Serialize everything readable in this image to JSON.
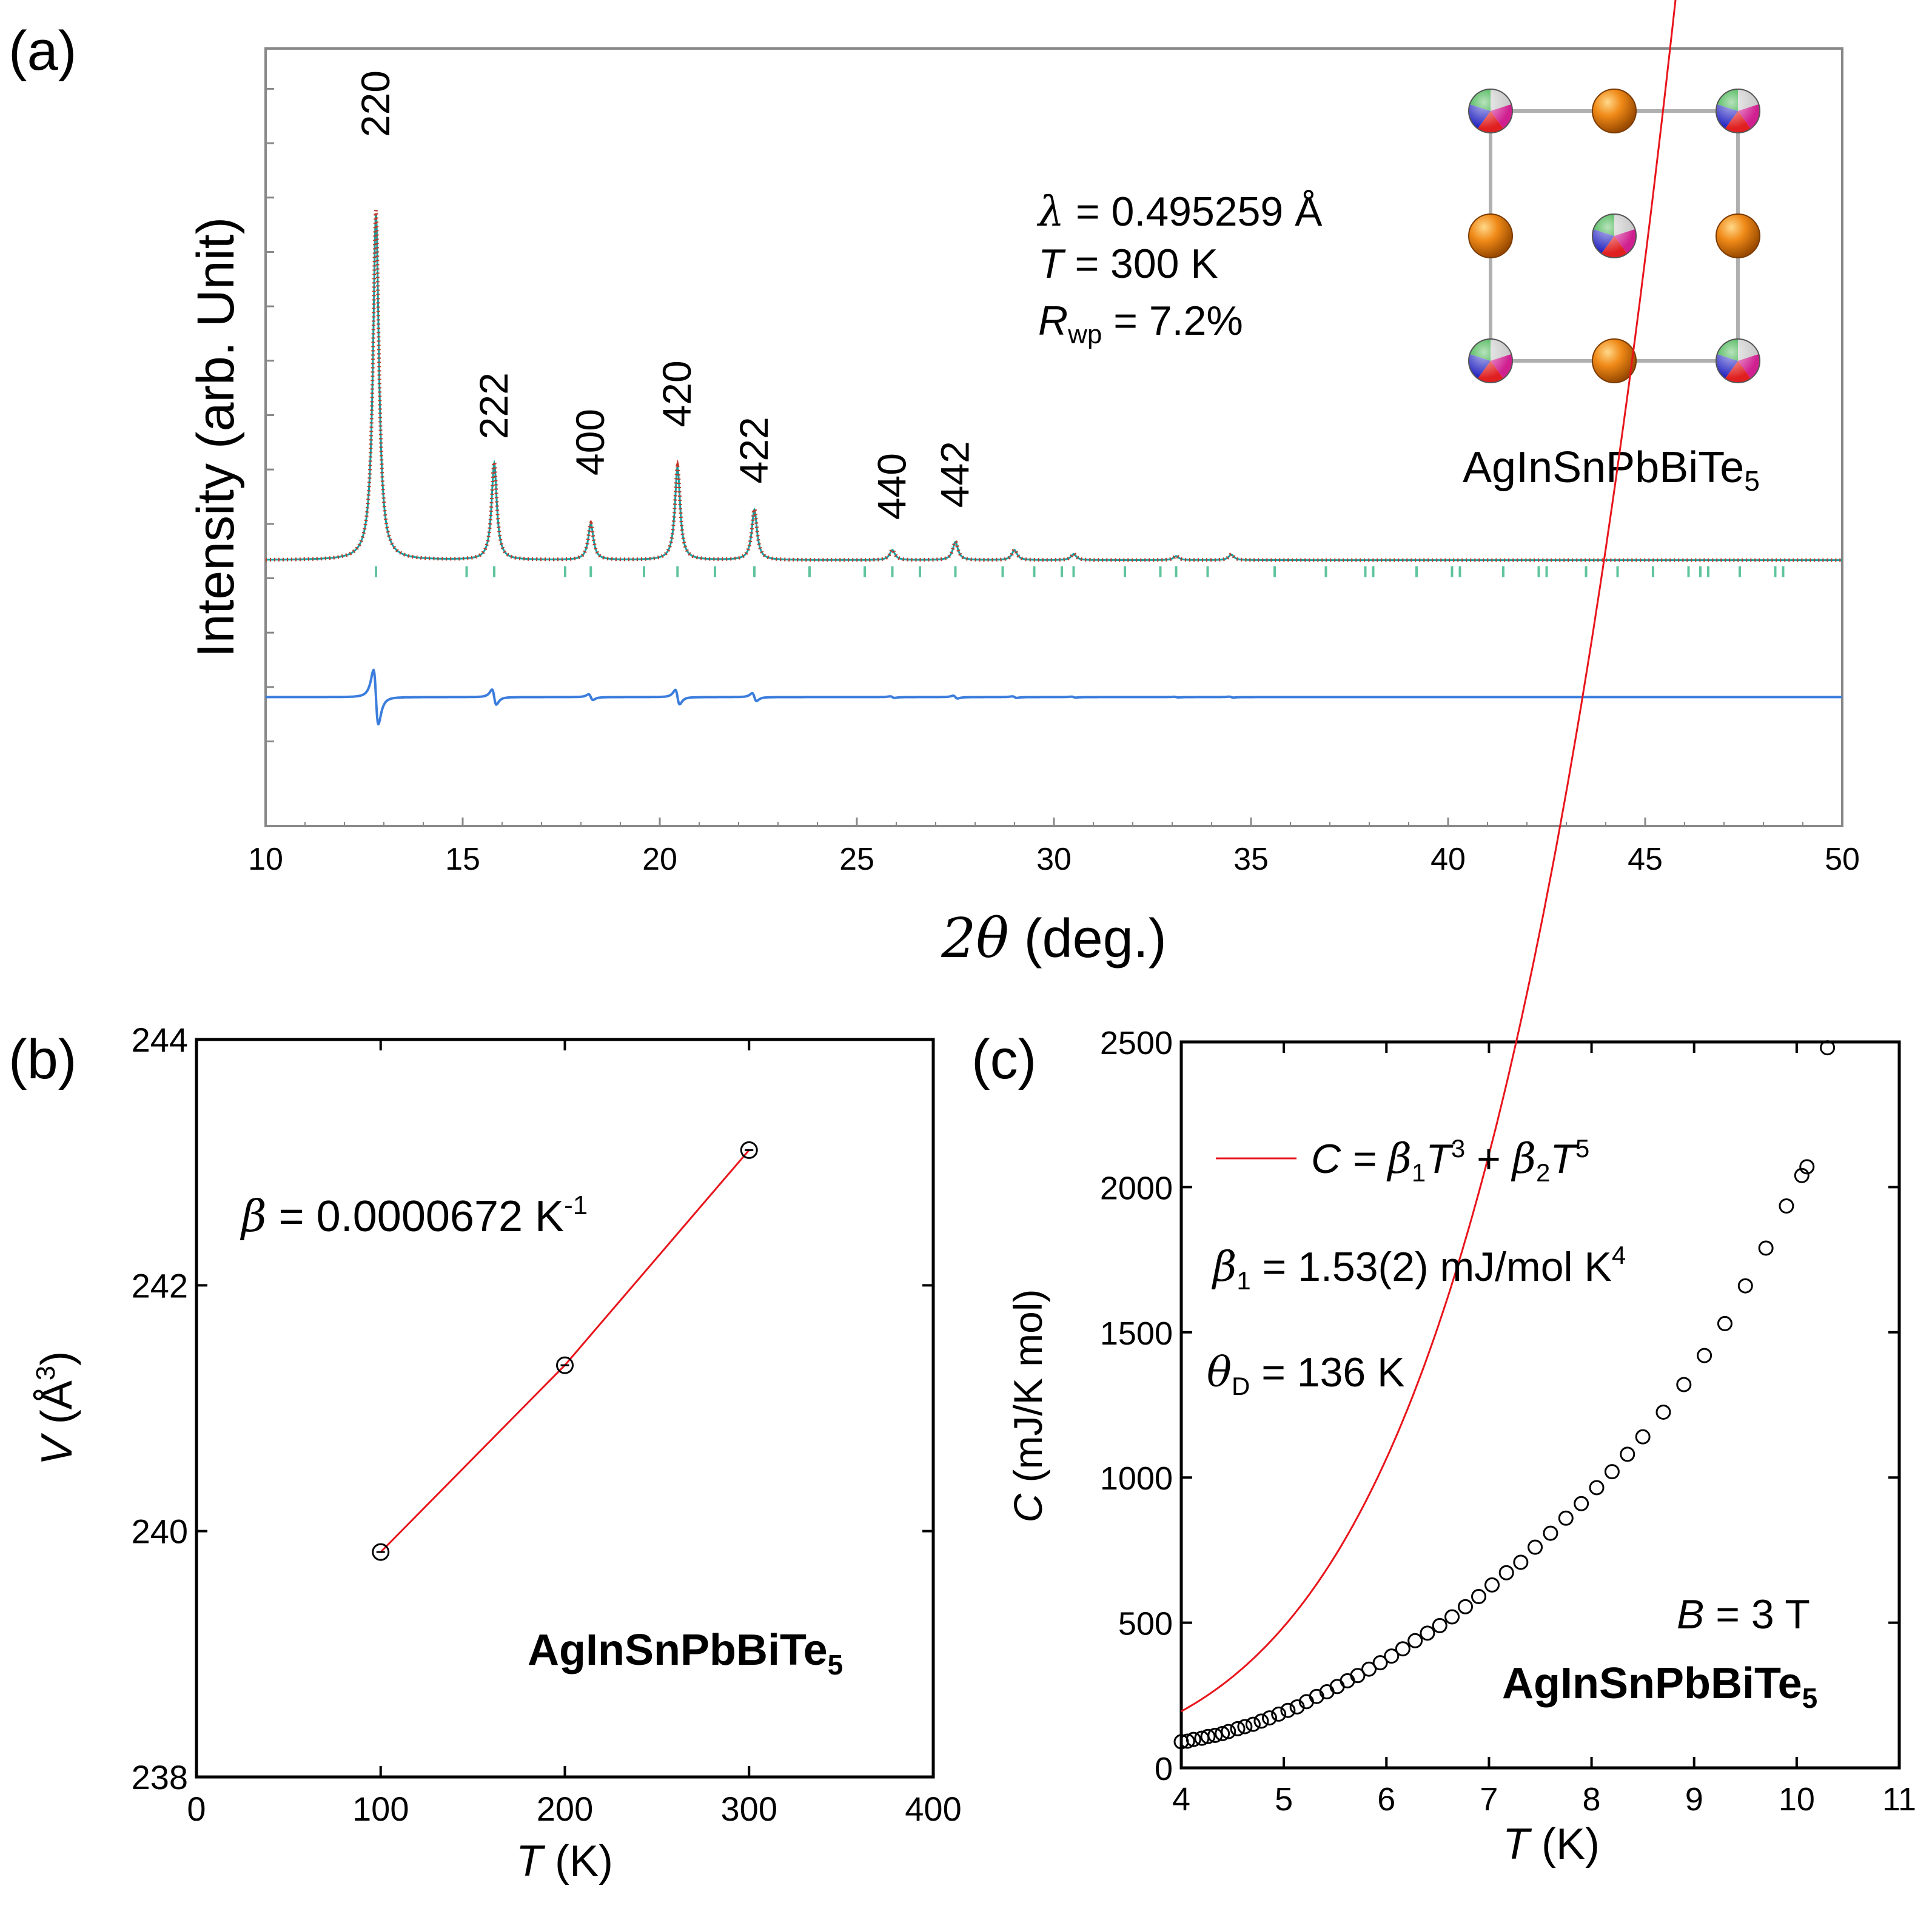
{
  "panels": {
    "a": "(a)",
    "b": "(b)",
    "c": "(c)"
  },
  "colors": {
    "observed": "#c0392b",
    "fit_line": "#17a2a2",
    "difference": "#3b7ddd",
    "bragg_ticks": "#5fc49e",
    "fit_red": "#e8141b",
    "atom_orange": "#e07b12"
  },
  "chart_data": [
    {
      "id": "a",
      "type": "line",
      "title": "",
      "xlabel_math": "2θ",
      "xlabel_unit": " (deg.)",
      "ylabel": "Intensity (arb. Unit)",
      "xlim": [
        10,
        50
      ],
      "xticks": [
        "10",
        "15",
        "20",
        "25",
        "30",
        "35",
        "40",
        "45",
        "50"
      ],
      "baseline_level": 0.0,
      "difference_level": -0.34,
      "ylim": [
        -0.66,
        1.27
      ],
      "peaks": [
        {
          "x": 12.8,
          "height": 0.86,
          "width": 0.09
        },
        {
          "x": 15.8,
          "height": 0.24,
          "width": 0.08
        },
        {
          "x": 18.25,
          "height": 0.09,
          "width": 0.08
        },
        {
          "x": 20.45,
          "height": 0.23,
          "width": 0.08
        },
        {
          "x": 22.4,
          "height": 0.125,
          "width": 0.08
        },
        {
          "x": 25.9,
          "height": 0.025,
          "width": 0.08
        },
        {
          "x": 27.5,
          "height": 0.045,
          "width": 0.08
        },
        {
          "x": 29.0,
          "height": 0.025,
          "width": 0.08
        },
        {
          "x": 30.5,
          "height": 0.015,
          "width": 0.08
        },
        {
          "x": 33.1,
          "height": 0.01,
          "width": 0.08
        },
        {
          "x": 34.5,
          "height": 0.014,
          "width": 0.08
        }
      ],
      "peak_labels": [
        {
          "x": 12.8,
          "label": "220",
          "y": 1.05
        },
        {
          "x": 15.8,
          "label": "222",
          "y": 0.3
        },
        {
          "x": 18.25,
          "label": "400",
          "y": 0.21
        },
        {
          "x": 20.45,
          "label": "420",
          "y": 0.33
        },
        {
          "x": 22.4,
          "label": "422",
          "y": 0.19
        },
        {
          "x": 25.9,
          "label": "440",
          "y": 0.1
        },
        {
          "x": 27.5,
          "label": "442",
          "y": 0.13
        }
      ],
      "bragg_positions": [
        12.8,
        15.1,
        15.8,
        17.6,
        18.25,
        19.6,
        20.45,
        21.4,
        22.4,
        23.8,
        25.2,
        25.9,
        26.6,
        27.5,
        28.7,
        29.5,
        30.2,
        30.5,
        31.8,
        32.7,
        33.1,
        33.9,
        35.6,
        36.9,
        37.9,
        38.1,
        39.2,
        40.1,
        40.3,
        41.4,
        42.3,
        42.5,
        43.5,
        44.3,
        45.2,
        46.1,
        46.4,
        46.6,
        47.4,
        48.3,
        48.5
      ],
      "annotations": {
        "lambda_symbol": "λ",
        "lambda_value": " = 0.495259 Å",
        "t_symbol": "T",
        "t_value": " = 300 K",
        "r_symbol": "R",
        "r_sub": "wp",
        "r_value": " = 7.2%"
      },
      "inset": {
        "formula": "AgInSnPbBiTe",
        "formula_sub": "5",
        "lattice": [
          [
            "mixed",
            "orange",
            "mixed"
          ],
          [
            "orange",
            "mixed",
            "orange"
          ],
          [
            "mixed",
            "orange",
            "mixed"
          ]
        ]
      }
    },
    {
      "id": "b",
      "type": "line",
      "xlabel_math": "T",
      "xlabel_unit": " (K)",
      "ylabel_math": "V",
      "ylabel_unit": " (Å",
      "ylabel_sup": "3",
      "ylabel_close": ")",
      "xlim": [
        0,
        400
      ],
      "ylim": [
        238,
        244
      ],
      "xticks": [
        "0",
        "100",
        "200",
        "300",
        "400"
      ],
      "yticks": [
        "238",
        "240",
        "242",
        "244"
      ],
      "series": [
        {
          "name": "data",
          "x": [
            100,
            200,
            300
          ],
          "y": [
            239.83,
            241.35,
            243.1
          ]
        }
      ],
      "annotation_symbol": "β",
      "annotation_value": " = 0.0000672 K",
      "annotation_sup": "-1",
      "formula": "AgInSnPbBiTe",
      "formula_sub": "5"
    },
    {
      "id": "c",
      "type": "scatter",
      "xlabel_math": "T",
      "xlabel_unit": " (K)",
      "ylabel_math": "C",
      "ylabel_unit": " (mJ/K mol)",
      "xlim": [
        4,
        11
      ],
      "ylim": [
        0,
        2500
      ],
      "xticks": [
        "4",
        "5",
        "6",
        "7",
        "8",
        "9",
        "10",
        "11"
      ],
      "yticks": [
        "0",
        "500",
        "1000",
        "1500",
        "2000",
        "2500"
      ],
      "fit": {
        "beta1": 1.53,
        "beta2": 9.45e-05
      },
      "series": [
        {
          "name": "data",
          "x": [
            4.0,
            4.06,
            4.12,
            4.2,
            4.26,
            4.33,
            4.4,
            4.46,
            4.55,
            4.62,
            4.7,
            4.78,
            4.86,
            4.95,
            5.04,
            5.13,
            5.22,
            5.32,
            5.42,
            5.52,
            5.62,
            5.72,
            5.83,
            5.94,
            6.05,
            6.16,
            6.28,
            6.4,
            6.52,
            6.64,
            6.77,
            6.9,
            7.03,
            7.17,
            7.31,
            7.45,
            7.6,
            7.75,
            7.9,
            8.05,
            8.2,
            8.35,
            8.5,
            8.7,
            8.9,
            9.1,
            9.3,
            9.5,
            9.7,
            9.9,
            10.05,
            10.1,
            10.3
          ],
          "y": [
            90,
            92,
            98,
            102,
            108,
            112,
            118,
            125,
            135,
            142,
            150,
            161,
            172,
            185,
            198,
            210,
            228,
            246,
            262,
            280,
            300,
            318,
            340,
            362,
            385,
            410,
            438,
            464,
            490,
            520,
            555,
            590,
            630,
            672,
            708,
            760,
            808,
            860,
            910,
            965,
            1020,
            1080,
            1140,
            1225,
            1320,
            1420,
            1530,
            1660,
            1790,
            1935,
            2040,
            2070,
            2480
          ]
        }
      ],
      "legend_prefix": "C = ",
      "legend_b1": "β",
      "legend_b1_sub": "1",
      "legend_t1": "T",
      "legend_t1_sup": "3",
      "legend_plus": " + ",
      "legend_b2": "β",
      "legend_b2_sub": "2",
      "legend_t2": "T",
      "legend_t2_sup": "5",
      "beta_symbol": "β",
      "beta_sub": "1",
      "beta_value": " = 1.53(2) mJ/mol K",
      "beta_sup": "4",
      "theta_symbol": "θ",
      "theta_sub": "D",
      "theta_value": " = 136 K",
      "b_symbol": "B",
      "b_value": " = 3 T",
      "formula": "AgInSnPbBiTe",
      "formula_sub": "5"
    }
  ]
}
